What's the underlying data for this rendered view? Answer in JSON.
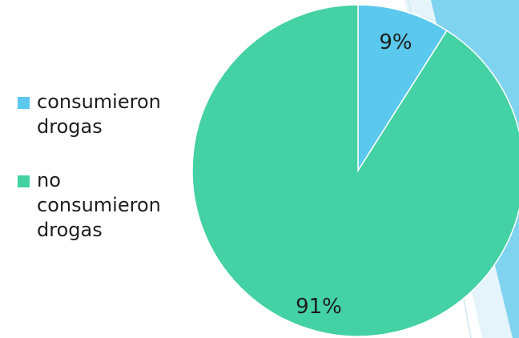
{
  "chart_data": {
    "type": "pie",
    "categories": [
      "consumieron drogas",
      "no consumieron drogas"
    ],
    "values": [
      9,
      91
    ],
    "value_labels": [
      "9%",
      "91%"
    ],
    "colors": [
      "#5bc8ee",
      "#44d1a3"
    ],
    "title": "",
    "legend": "left",
    "start_angle": "top, clockwise"
  },
  "legend": {
    "items": [
      {
        "label": "consumieron drogas",
        "color": "#5bc8ee"
      },
      {
        "label": "no consumieron drogas",
        "color": "#44d1a3"
      }
    ]
  },
  "theme": {
    "backdrop_accent": "#80d3ef",
    "backdrop_light": "#cdebf6"
  }
}
